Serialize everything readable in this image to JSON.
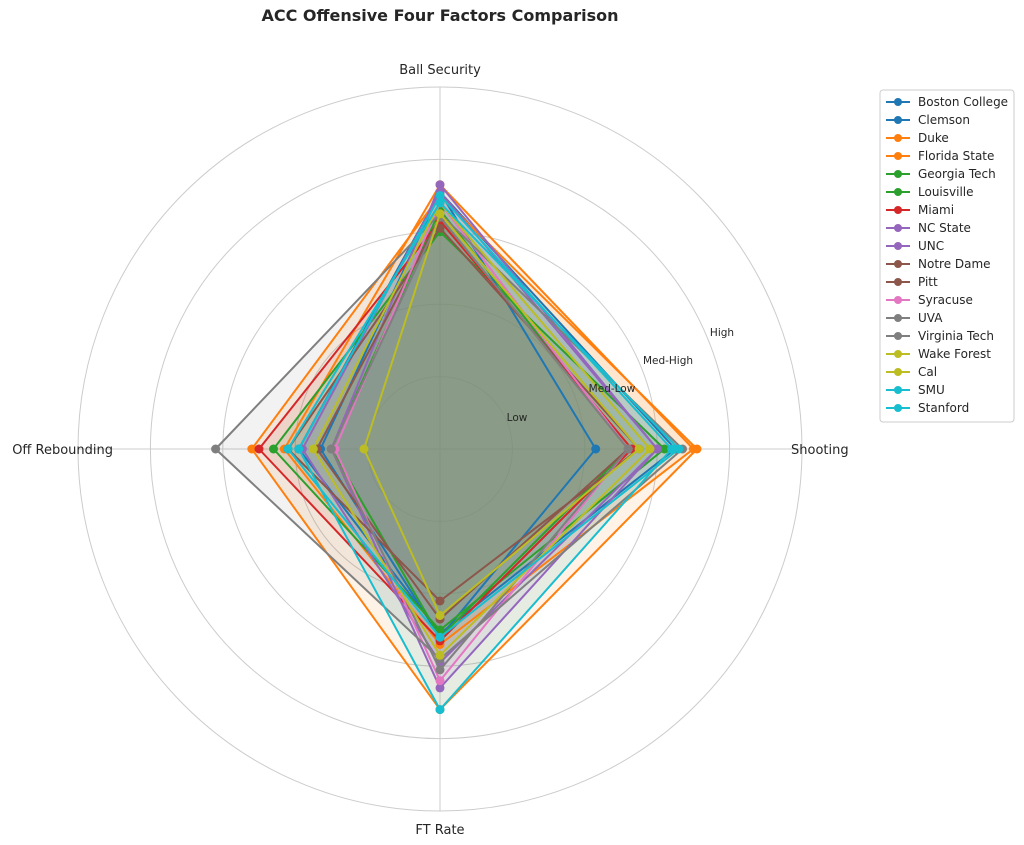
{
  "title": "ACC Offensive Four Factors Comparison",
  "chart_data": {
    "type": "radar",
    "title": "ACC Offensive Four Factors Comparison",
    "axes": [
      "Shooting",
      "Ball Security",
      "Off Rebounding",
      "FT Rate"
    ],
    "ring_labels": [
      "Low",
      "Med-Low",
      "Med-High",
      "High"
    ],
    "rlim": [
      0,
      5
    ],
    "grid": true,
    "legend_position": "upper right outside",
    "series": [
      {
        "name": "Boston College",
        "color": "#1f77b4",
        "values": [
          2.15,
          3.55,
          1.65,
          2.6
        ]
      },
      {
        "name": "Clemson",
        "color": "#1f77b4",
        "values": [
          3.25,
          3.55,
          1.95,
          2.55
        ]
      },
      {
        "name": "Duke",
        "color": "#ff7f0e",
        "values": [
          3.5,
          3.65,
          2.15,
          2.7
        ]
      },
      {
        "name": "Florida State",
        "color": "#ff7f0e",
        "values": [
          3.55,
          3.5,
          2.6,
          3.6
        ]
      },
      {
        "name": "Georgia Tech",
        "color": "#2ca02c",
        "values": [
          3.1,
          3.0,
          2.3,
          2.5
        ]
      },
      {
        "name": "Louisville",
        "color": "#2ca02c",
        "values": [
          2.6,
          3.3,
          1.5,
          2.6
        ]
      },
      {
        "name": "Miami",
        "color": "#d62728",
        "values": [
          2.65,
          3.15,
          2.5,
          2.65
        ]
      },
      {
        "name": "NC State",
        "color": "#9467bd",
        "values": [
          3.0,
          3.55,
          1.9,
          2.95
        ]
      },
      {
        "name": "UNC",
        "color": "#9467bd",
        "values": [
          3.0,
          3.65,
          1.5,
          3.3
        ]
      },
      {
        "name": "Notre Dame",
        "color": "#8c564b",
        "values": [
          2.75,
          3.05,
          2.1,
          2.1
        ]
      },
      {
        "name": "Pitt",
        "color": "#8c564b",
        "values": [
          2.6,
          3.2,
          1.7,
          2.35
        ]
      },
      {
        "name": "Syracuse",
        "color": "#e377c2",
        "values": [
          2.6,
          3.4,
          1.45,
          3.2
        ]
      },
      {
        "name": "UVA",
        "color": "#7f7f7f",
        "values": [
          2.6,
          3.2,
          1.5,
          3.05
        ]
      },
      {
        "name": "Virginia Tech",
        "color": "#7f7f7f",
        "values": [
          3.35,
          3.25,
          3.1,
          2.9
        ]
      },
      {
        "name": "Wake Forest",
        "color": "#bcbd22",
        "values": [
          2.9,
          3.4,
          1.75,
          2.85
        ]
      },
      {
        "name": "Cal",
        "color": "#bcbd22",
        "values": [
          2.75,
          3.25,
          1.05,
          2.3
        ]
      },
      {
        "name": "SMU",
        "color": "#17becf",
        "values": [
          3.3,
          3.4,
          2.1,
          2.6
        ]
      },
      {
        "name": "Stanford",
        "color": "#17becf",
        "values": [
          3.2,
          3.5,
          1.95,
          3.6
        ]
      }
    ]
  }
}
